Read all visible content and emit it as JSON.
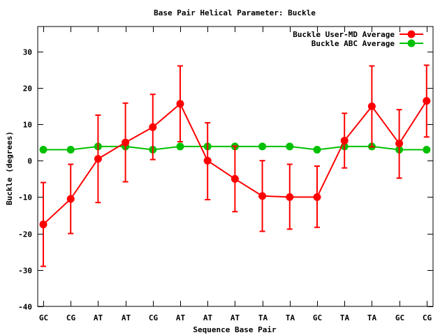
{
  "chart_data": {
    "type": "line",
    "title": "Base Pair Helical Parameter: Buckle",
    "xlabel": "Sequence Base Pair",
    "ylabel": "Buckle (degrees)",
    "categories": [
      "GC",
      "CG",
      "AT",
      "AT",
      "CG",
      "AT",
      "AT",
      "AT",
      "TA",
      "TA",
      "GC",
      "TA",
      "TA",
      "GC",
      "CG"
    ],
    "ylim": [
      -40,
      38
    ],
    "yticks": [
      "-40",
      "-30",
      "-20",
      "-10",
      "0",
      "10",
      "20",
      "30"
    ],
    "grid": false,
    "legend_position": "top-right",
    "series": [
      {
        "name": "Buckle User-MD Average",
        "color": "#ff0000",
        "marker": "circle",
        "values": [
          -17.5,
          -10.5,
          0.5,
          5.0,
          9.2,
          15.6,
          0.0,
          -5.0,
          -9.7,
          -10.0,
          -10.0,
          5.5,
          14.9,
          4.7,
          16.4
        ],
        "error_low": [
          -29.0,
          -20.0,
          -11.5,
          -5.8,
          0.3,
          5.2,
          -10.7,
          -14.0,
          -19.4,
          -18.8,
          -18.3,
          -2.0,
          3.8,
          -4.8,
          6.5
        ],
        "error_high": [
          -6.0,
          -1.0,
          12.5,
          15.8,
          18.2,
          26.0,
          10.4,
          4.0,
          0.0,
          -1.0,
          -1.5,
          13.0,
          26.0,
          14.0,
          26.2
        ]
      },
      {
        "name": "Buckle ABC Average",
        "color": "#00c000",
        "marker": "circle",
        "values": [
          3.0,
          3.0,
          3.9,
          3.9,
          3.0,
          3.9,
          3.9,
          3.9,
          3.9,
          3.9,
          3.0,
          3.9,
          3.9,
          3.0,
          3.0
        ]
      }
    ]
  }
}
